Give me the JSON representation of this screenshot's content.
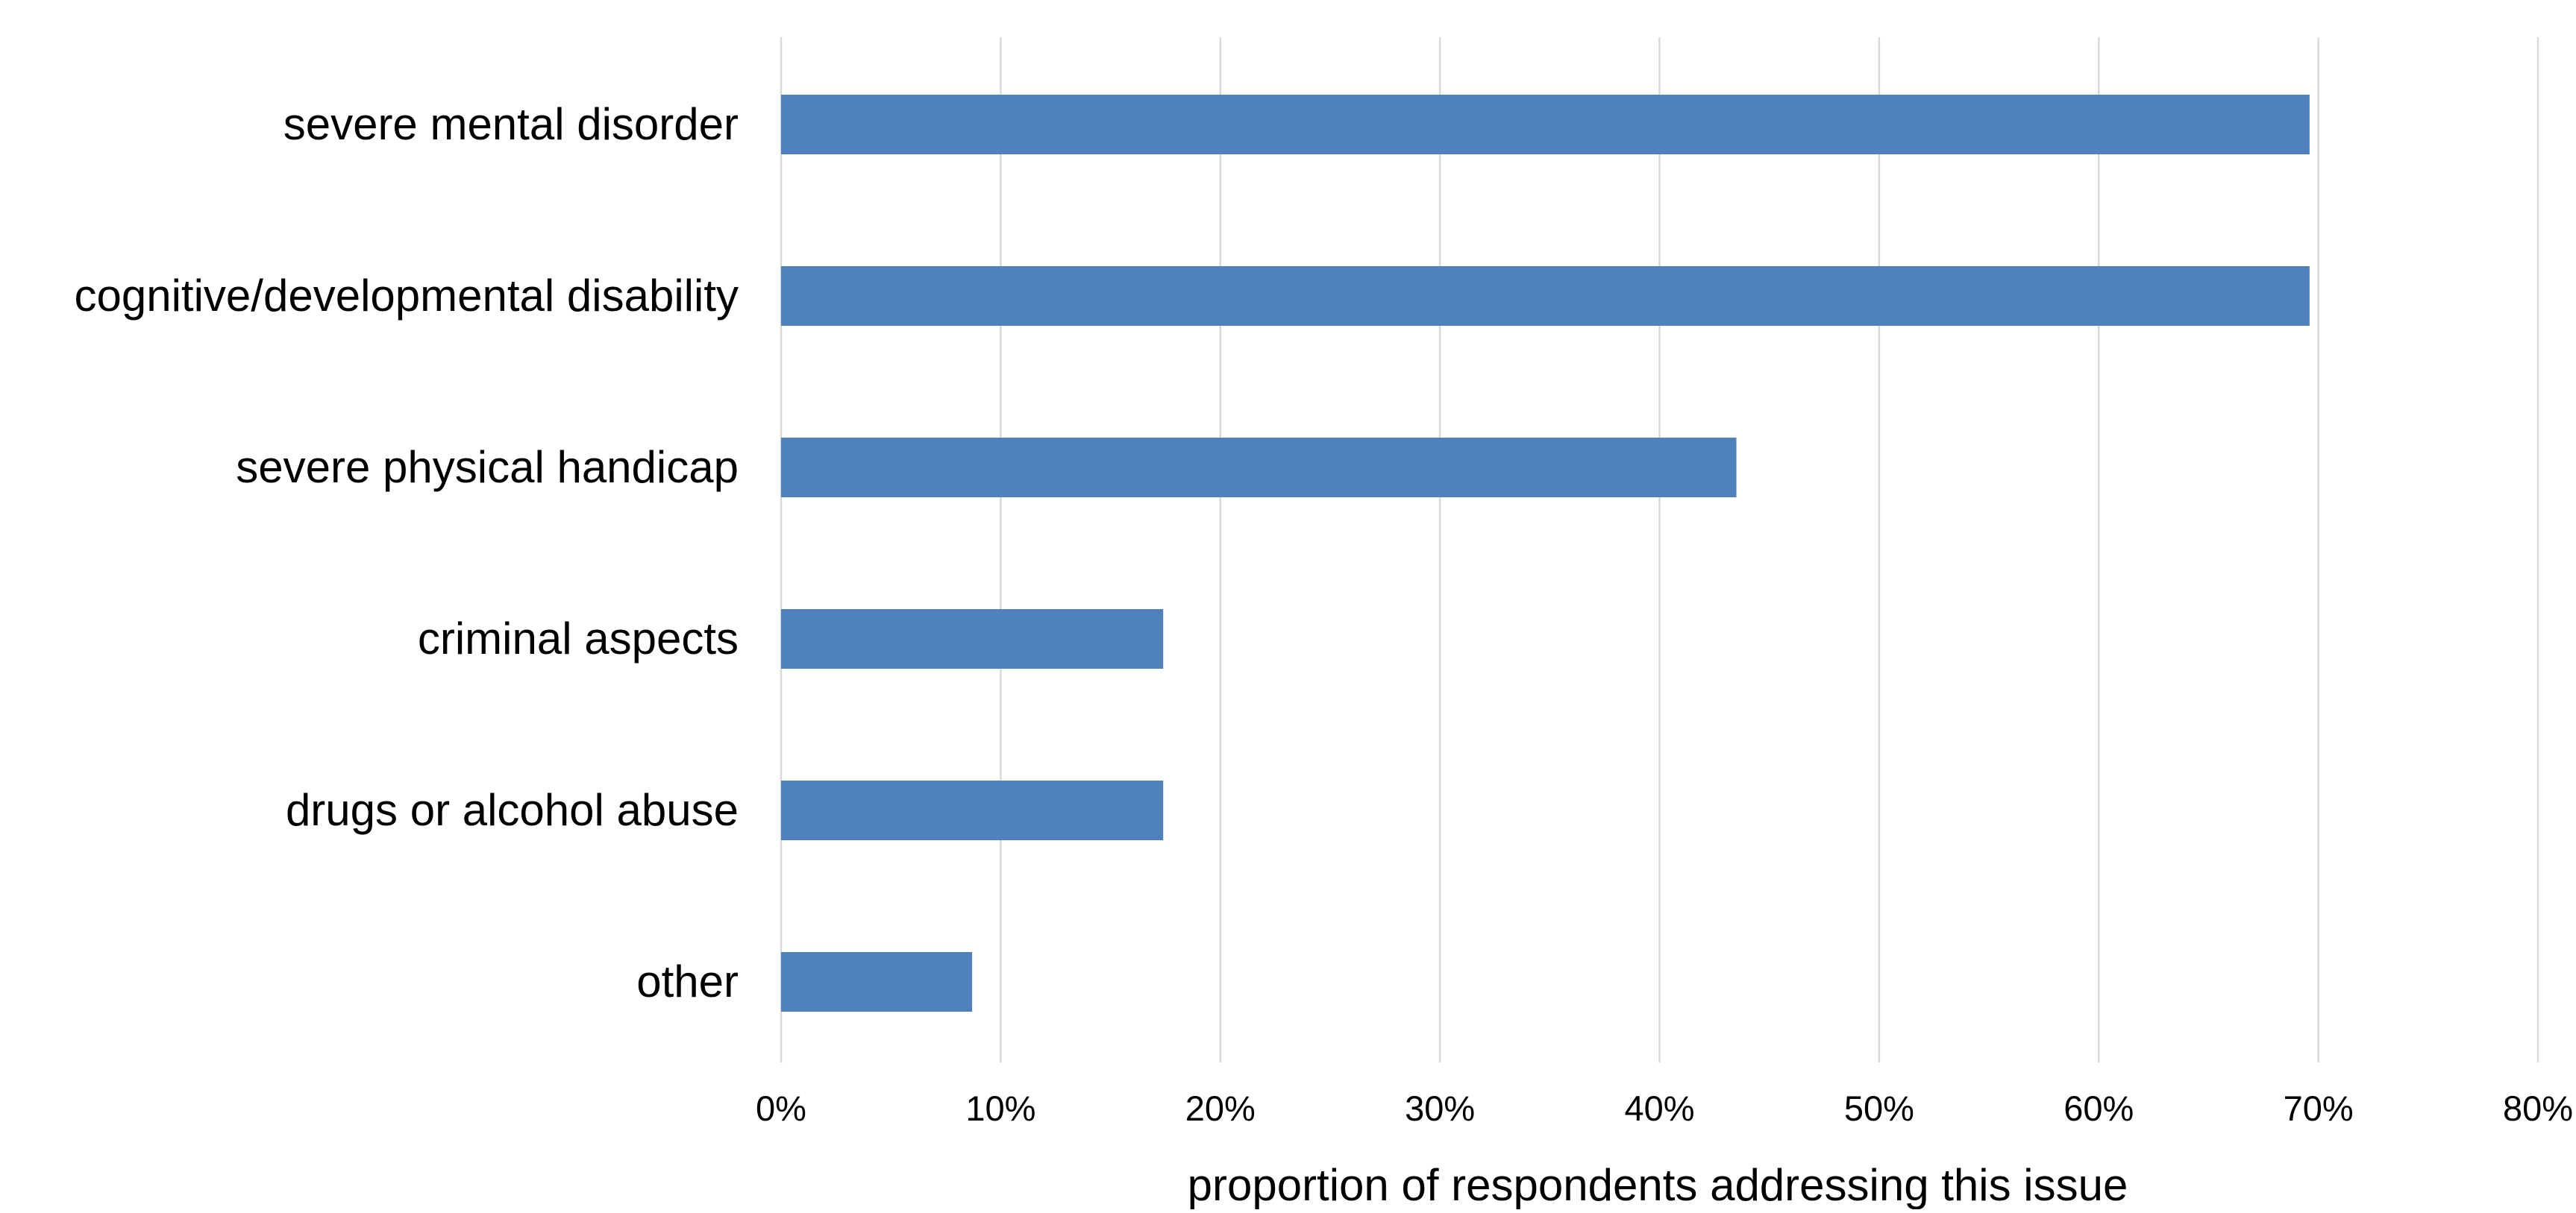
{
  "chart_data": {
    "type": "bar",
    "orientation": "horizontal",
    "title": "",
    "xlabel": "proportion of respondents addressing this issue",
    "ylabel": "",
    "categories": [
      "severe mental disorder",
      "cognitive/developmental disability",
      "severe physical handicap",
      "criminal aspects",
      "drugs or alcohol abuse",
      "other"
    ],
    "values": [
      69.6,
      69.6,
      43.5,
      17.4,
      17.4,
      8.7
    ],
    "unit": "%",
    "xlim": [
      0,
      80
    ],
    "x_ticks": [
      "0%",
      "10%",
      "20%",
      "30%",
      "40%",
      "50%",
      "60%",
      "70%",
      "80%"
    ],
    "grid": "vertical",
    "legend": "none",
    "colors": {
      "bar": "#4f81bd",
      "grid": "#d9d9d9",
      "text": "#000000"
    }
  }
}
